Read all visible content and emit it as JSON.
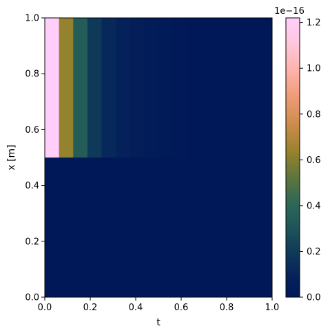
{
  "chart_data": {
    "type": "heatmap",
    "xlabel": "t",
    "ylabel": "x [m]",
    "xlim": [
      0,
      1
    ],
    "ylim": [
      0,
      1
    ],
    "x_ticks": [
      "0.0",
      "0.2",
      "0.4",
      "0.6",
      "0.8",
      "1.0"
    ],
    "y_ticks": [
      "0.0",
      "0.2",
      "0.4",
      "0.6",
      "0.8",
      "1.0"
    ],
    "colorbar": {
      "range": [
        0,
        1.22
      ],
      "offset_label": "1e−16",
      "ticks": [
        "0.0",
        "0.2",
        "0.4",
        "0.6",
        "0.8",
        "1.0",
        "1.2"
      ],
      "colormap": "cubehelix-like"
    },
    "grid": false,
    "t_bins": [
      0.0,
      0.0625,
      0.125,
      0.1875,
      0.25,
      0.3125,
      0.375,
      0.4375,
      0.5,
      0.5625,
      0.625,
      1.0
    ],
    "regions": [
      {
        "x_range": [
          0.5,
          1.0
        ],
        "values": [
          1.22,
          0.63,
          0.34,
          0.19,
          0.12,
          0.08,
          0.05,
          0.03,
          0.02,
          0.01,
          0.0
        ]
      },
      {
        "x_range": [
          0.0,
          0.5
        ],
        "values": [
          0.0,
          0.0,
          0.0,
          0.0,
          0.0,
          0.0,
          0.0,
          0.0,
          0.0,
          0.0,
          0.0
        ]
      }
    ]
  }
}
